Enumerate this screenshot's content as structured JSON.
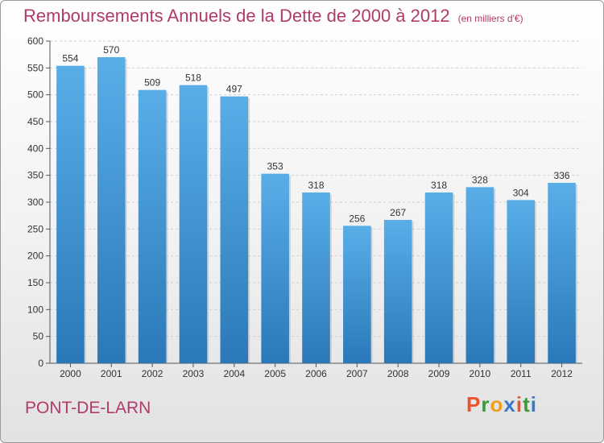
{
  "chart_data": {
    "type": "bar",
    "title": "Remboursements Annuels de la Dette de 2000 à 2012",
    "unit": "(en milliers d'€)",
    "categories": [
      "2000",
      "2001",
      "2002",
      "2003",
      "2004",
      "2005",
      "2006",
      "2007",
      "2008",
      "2009",
      "2010",
      "2011",
      "2012"
    ],
    "values": [
      554,
      570,
      509,
      518,
      497,
      353,
      318,
      256,
      267,
      318,
      328,
      304,
      336
    ],
    "ylim": [
      0,
      600
    ],
    "yticks": [
      0,
      50,
      100,
      150,
      200,
      250,
      300,
      350,
      400,
      450,
      500,
      550,
      600
    ],
    "grid": true,
    "bar_color_top": "#5aaee8",
    "bar_color_bottom": "#2a78b8"
  },
  "footer": {
    "place": "PONT-DE-LARN",
    "logo": "Proxiti"
  },
  "colors": {
    "title": "#b03a6a",
    "logo_letters": [
      "#e8542c",
      "#3a9a3c",
      "#f0a020",
      "#3a78c8",
      "#e8542c",
      "#3a9a3c",
      "#3a78c8"
    ]
  }
}
